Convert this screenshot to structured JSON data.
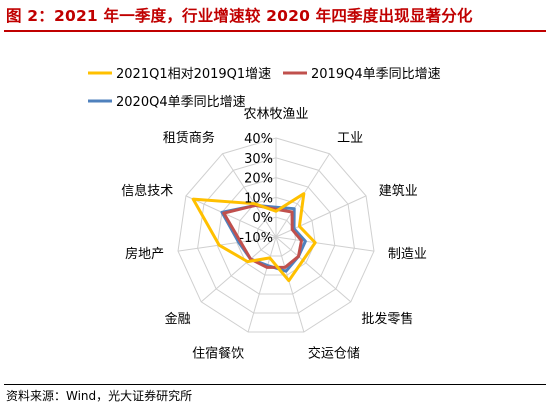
{
  "title": "图 2：2021 年一季度，行业增速较 2020 年四季度出现显著分化",
  "source": "资料来源：Wind，光大证券研究所",
  "chart_data": {
    "type": "radar",
    "title": "图 2：2021 年一季度，行业增速较 2020 年四季度出现显著分化",
    "categories": [
      "农林牧渔业",
      "工业",
      "建筑业",
      "制造业",
      "批发零售",
      "交运仓储",
      "住宿餐饮",
      "金融",
      "房地产",
      "信息技术",
      "租赁商务"
    ],
    "r_ticks": [
      "-10%",
      "0%",
      "10%",
      "20%",
      "30%",
      "40%"
    ],
    "rlim": [
      -10,
      40
    ],
    "grid": true,
    "legend_position": "top",
    "series": [
      {
        "name": "2021Q1相对2019Q1增速",
        "color": "#FFC000",
        "values": [
          3,
          16,
          3,
          10,
          8,
          13,
          1,
          9,
          19,
          36,
          10
        ]
      },
      {
        "name": "2019Q4单季同比增速",
        "color": "#C0504D",
        "values": [
          4,
          5,
          -1,
          3,
          5,
          6,
          6,
          7,
          8,
          19,
          9
        ]
      },
      {
        "name": "2020Q4单季同比增速",
        "color": "#4F81BD",
        "values": [
          5,
          7,
          0,
          5,
          5,
          8,
          5,
          7,
          9,
          20,
          9
        ]
      }
    ]
  }
}
